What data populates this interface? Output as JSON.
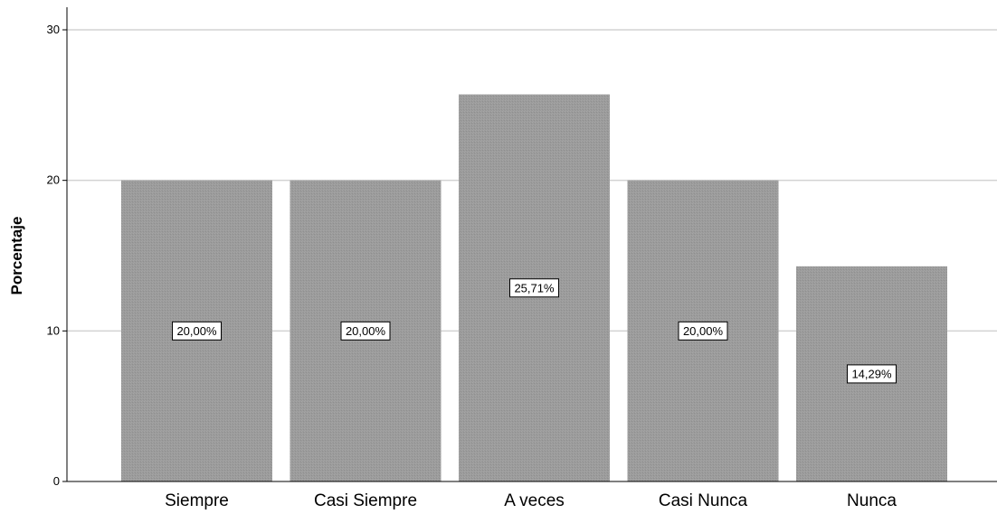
{
  "chart_data": {
    "type": "bar",
    "categories": [
      "Siempre",
      "Casi Siempre",
      "A veces",
      "Casi Nunca",
      "Nunca"
    ],
    "values": [
      20.0,
      20.0,
      25.71,
      20.0,
      14.29
    ],
    "data_labels": [
      "20,00%",
      "20,00%",
      "25,71%",
      "20,00%",
      "14,29%"
    ],
    "title": "",
    "xlabel": "",
    "ylabel": "Porcentaje",
    "ylim": [
      0,
      31.5
    ],
    "yticks": [
      0,
      10,
      20,
      30
    ],
    "ytick_labels": [
      "0",
      "10",
      "20",
      "30"
    ],
    "grid": true,
    "legend": "none",
    "colors": {
      "bar_fill": "#9b9b9b",
      "gridline": "#d3d3d3",
      "axis": "#000000",
      "label_box_fill": "#ffffff",
      "label_box_stroke": "#000000"
    }
  }
}
